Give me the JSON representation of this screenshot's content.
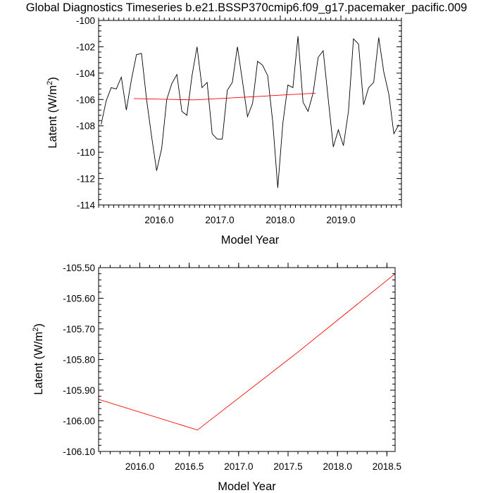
{
  "title": "Global Diagnostics Timeseries b.e21.BSSP370cmip6.f09_g17.pacemaker_pacific.009",
  "chart_data": [
    {
      "type": "line",
      "xlabel": "Model Year",
      "ylabel_main": "Latent (W/m",
      "ylabel_sup": "2",
      "ylabel_close": ")",
      "xlim": [
        2015.0,
        2020.0
      ],
      "ylim": [
        -114,
        -100
      ],
      "xticks": [
        2016.0,
        2017.0,
        2018.0,
        2019.0
      ],
      "xtick_labels": [
        "2016.0",
        "2017.0",
        "2018.0",
        "2019.0"
      ],
      "yticks": [
        -114,
        -112,
        -110,
        -108,
        -106,
        -104,
        -102,
        -100
      ],
      "ytick_labels": [
        "-114",
        "-112",
        "-110",
        "-108",
        "-106",
        "-104",
        "-102",
        "-100"
      ],
      "series": [
        {
          "color": "#000000",
          "x": [
            2015.042,
            2015.125,
            2015.208,
            2015.292,
            2015.375,
            2015.458,
            2015.542,
            2015.625,
            2015.708,
            2015.792,
            2015.875,
            2015.958,
            2016.042,
            2016.125,
            2016.208,
            2016.292,
            2016.375,
            2016.458,
            2016.542,
            2016.625,
            2016.708,
            2016.792,
            2016.875,
            2016.958,
            2017.042,
            2017.125,
            2017.208,
            2017.292,
            2017.375,
            2017.458,
            2017.542,
            2017.625,
            2017.708,
            2017.792,
            2017.875,
            2017.958,
            2018.042,
            2018.125,
            2018.208,
            2018.292,
            2018.375,
            2018.458,
            2018.542,
            2018.625,
            2018.708,
            2018.792,
            2018.875,
            2018.958,
            2019.042,
            2019.125,
            2019.208,
            2019.292,
            2019.375,
            2019.458,
            2019.542,
            2019.625,
            2019.708,
            2019.792,
            2019.875,
            2019.958
          ],
          "y": [
            -107.9,
            -106.1,
            -105.1,
            -105.2,
            -104.3,
            -106.8,
            -104.5,
            -102.6,
            -102.5,
            -106.0,
            -108.8,
            -111.4,
            -109.7,
            -106.0,
            -104.8,
            -104.1,
            -106.9,
            -107.2,
            -104.2,
            -102.0,
            -105.1,
            -104.7,
            -108.6,
            -109.0,
            -109.0,
            -105.3,
            -104.7,
            -102.0,
            -104.6,
            -107.3,
            -106.3,
            -103.1,
            -103.4,
            -104.2,
            -107.7,
            -112.7,
            -107.8,
            -104.9,
            -105.1,
            -101.2,
            -106.2,
            -106.9,
            -105.5,
            -102.8,
            -102.3,
            -106.0,
            -109.6,
            -108.3,
            -109.5,
            -106.9,
            -101.4,
            -101.8,
            -106.4,
            -105.1,
            -104.7,
            -101.3,
            -103.9,
            -105.6,
            -108.6,
            -107.9
          ]
        },
        {
          "color": "#ff0000",
          "x": [
            2015.583,
            2016.583,
            2017.583,
            2018.583
          ],
          "y": [
            -105.93,
            -106.03,
            -105.78,
            -105.52
          ]
        }
      ]
    },
    {
      "type": "line",
      "xlabel": "Model Year",
      "ylabel_main": "Latent (W/m",
      "ylabel_sup": "2",
      "ylabel_close": ")",
      "xlim": [
        2015.583,
        2018.583
      ],
      "ylim": [
        -106.1,
        -105.5
      ],
      "xticks": [
        2016.0,
        2016.5,
        2017.0,
        2017.5,
        2018.0,
        2018.5
      ],
      "xtick_labels": [
        "2016.0",
        "2016.5",
        "2017.0",
        "2017.5",
        "2018.0",
        "2018.5"
      ],
      "yticks": [
        -106.1,
        -106.0,
        -105.9,
        -105.8,
        -105.7,
        -105.6,
        -105.5
      ],
      "ytick_labels": [
        "-106.10",
        "-106.00",
        "-105.90",
        "-105.80",
        "-105.70",
        "-105.60",
        "-105.50"
      ],
      "series": [
        {
          "color": "#ff0000",
          "x": [
            2015.583,
            2016.583,
            2017.583,
            2018.583
          ],
          "y": [
            -105.93,
            -106.03,
            -105.78,
            -105.52
          ]
        }
      ]
    }
  ]
}
